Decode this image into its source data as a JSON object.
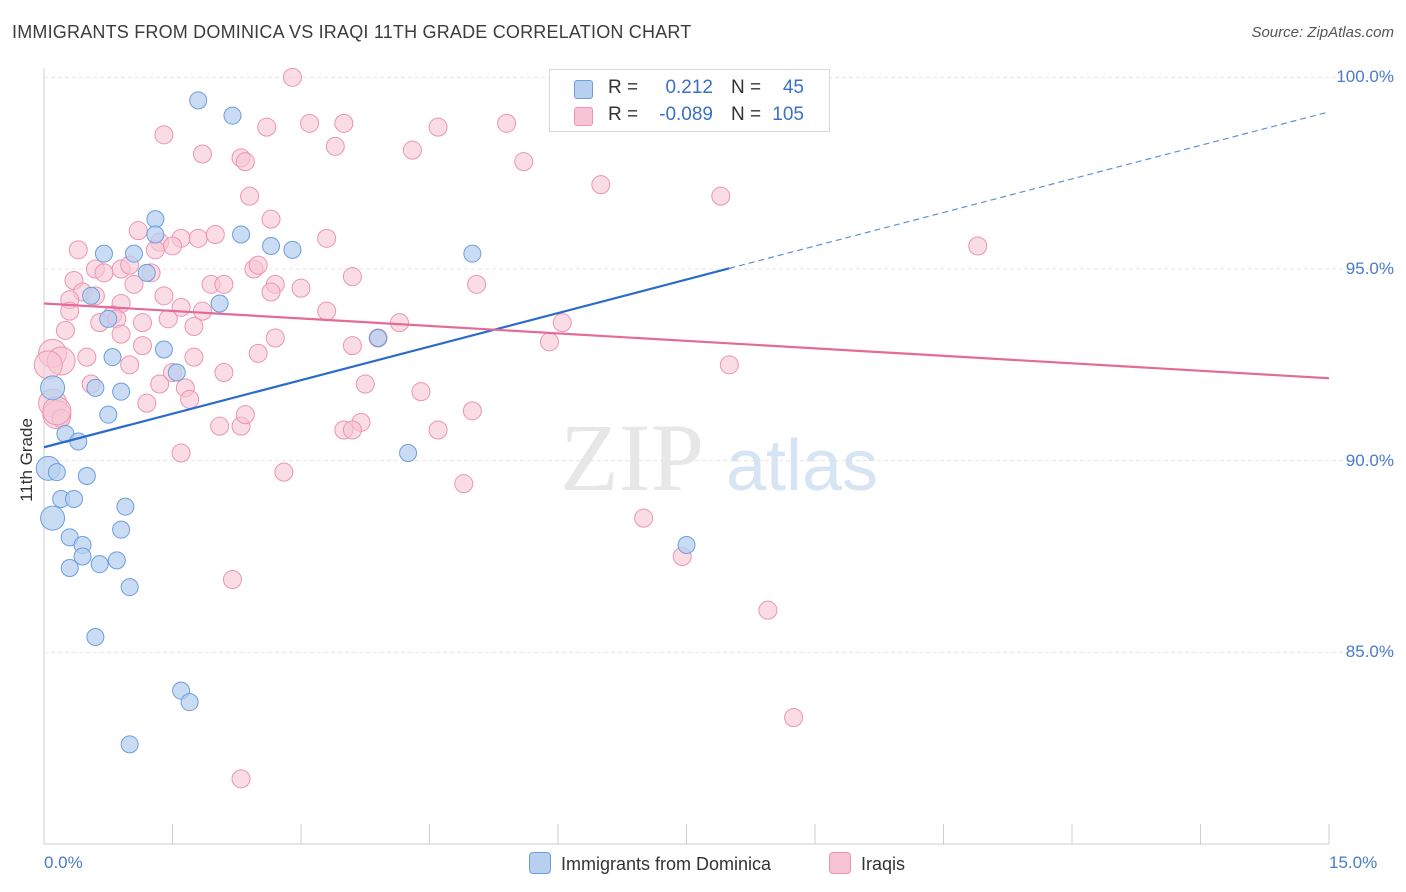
{
  "header": {
    "title": "IMMIGRANTS FROM DOMINICA VS IRAQI 11TH GRADE CORRELATION CHART",
    "source": "Source: ZipAtlas.com"
  },
  "watermark": {
    "zip": "ZIP",
    "atlas": "atlas"
  },
  "legend": {
    "r_label": "R =",
    "n_label": "N =",
    "rows": [
      {
        "r": "0.212",
        "n": "45"
      },
      {
        "r": "-0.089",
        "n": "105"
      }
    ]
  },
  "bottom_legend": {
    "series1": "Immigrants from Dominica",
    "series2": "Iraqis"
  },
  "colors": {
    "blue_fill": "#b7d0f0",
    "blue_stroke": "#6c9ede",
    "blue_line": "#2a6cc8",
    "pink_fill": "#f6c4d4",
    "pink_stroke": "#ec94b2",
    "pink_line": "#e46b98",
    "axis_text": "#4a7ac8"
  },
  "chart_data": {
    "type": "scatter",
    "title": "IMMIGRANTS FROM DOMINICA VS IRAQI 11TH GRADE CORRELATION CHART",
    "xlabel": "",
    "ylabel": "11th Grade",
    "xlim": [
      0,
      15
    ],
    "ylim": [
      80.0,
      100.4
    ],
    "x_tick_labels": [
      "0.0%",
      "15.0%"
    ],
    "y_ticks": [
      85,
      90,
      95,
      100
    ],
    "y_tick_labels": [
      "85.0%",
      "90.0%",
      "95.0%",
      "100.0%"
    ],
    "grid": true,
    "series": [
      {
        "name": "Immigrants from Dominica",
        "r": 0.212,
        "n": 45,
        "trend": {
          "x0": 0,
          "y0": 90.35,
          "x1": 15,
          "y1": 99.1,
          "solid_until_x": 8.0
        },
        "points": [
          [
            1.8,
            99.4
          ],
          [
            2.2,
            99.0
          ],
          [
            1.3,
            96.3
          ],
          [
            1.3,
            95.9
          ],
          [
            2.3,
            95.9
          ],
          [
            0.7,
            95.4
          ],
          [
            1.05,
            95.4
          ],
          [
            2.65,
            95.6
          ],
          [
            2.9,
            95.5
          ],
          [
            1.2,
            94.9
          ],
          [
            0.55,
            94.3
          ],
          [
            2.05,
            94.1
          ],
          [
            0.75,
            93.7
          ],
          [
            3.9,
            93.2
          ],
          [
            1.4,
            92.9
          ],
          [
            0.8,
            92.7
          ],
          [
            0.1,
            91.9
          ],
          [
            0.6,
            91.9
          ],
          [
            0.9,
            91.8
          ],
          [
            1.55,
            92.3
          ],
          [
            0.75,
            91.2
          ],
          [
            0.25,
            90.7
          ],
          [
            0.4,
            90.5
          ],
          [
            0.05,
            89.8
          ],
          [
            0.15,
            89.7
          ],
          [
            0.5,
            89.6
          ],
          [
            0.2,
            89.0
          ],
          [
            0.35,
            89.0
          ],
          [
            0.1,
            88.5
          ],
          [
            0.95,
            88.8
          ],
          [
            0.9,
            88.2
          ],
          [
            0.3,
            88.0
          ],
          [
            0.45,
            87.8
          ],
          [
            0.45,
            87.5
          ],
          [
            0.65,
            87.3
          ],
          [
            0.85,
            87.4
          ],
          [
            0.3,
            87.2
          ],
          [
            1.0,
            86.7
          ],
          [
            0.6,
            85.4
          ],
          [
            1.6,
            84.0
          ],
          [
            1.7,
            83.7
          ],
          [
            1.0,
            82.6
          ],
          [
            4.25,
            90.2
          ],
          [
            5.0,
            95.4
          ],
          [
            7.5,
            87.8
          ]
        ]
      },
      {
        "name": "Iraqis",
        "r": -0.089,
        "n": 105,
        "trend": {
          "x0": 0,
          "y0": 94.1,
          "x1": 15,
          "y1": 92.15
        },
        "points": [
          [
            2.9,
            100.0
          ],
          [
            1.4,
            98.5
          ],
          [
            2.6,
            98.7
          ],
          [
            3.1,
            98.8
          ],
          [
            3.5,
            98.8
          ],
          [
            4.6,
            98.7
          ],
          [
            5.4,
            98.8
          ],
          [
            3.4,
            98.2
          ],
          [
            4.3,
            98.1
          ],
          [
            1.85,
            98.0
          ],
          [
            2.3,
            97.9
          ],
          [
            2.35,
            97.8
          ],
          [
            5.6,
            97.8
          ],
          [
            6.5,
            97.2
          ],
          [
            7.9,
            96.9
          ],
          [
            2.4,
            96.9
          ],
          [
            2.65,
            96.3
          ],
          [
            1.1,
            96.0
          ],
          [
            1.35,
            95.7
          ],
          [
            1.6,
            95.8
          ],
          [
            1.8,
            95.8
          ],
          [
            2.0,
            95.9
          ],
          [
            3.3,
            95.8
          ],
          [
            0.4,
            95.5
          ],
          [
            1.5,
            95.6
          ],
          [
            1.3,
            95.5
          ],
          [
            10.9,
            95.6
          ],
          [
            0.6,
            95.0
          ],
          [
            0.9,
            95.0
          ],
          [
            1.0,
            95.1
          ],
          [
            0.7,
            94.9
          ],
          [
            1.25,
            94.9
          ],
          [
            2.45,
            95.0
          ],
          [
            2.5,
            95.1
          ],
          [
            3.6,
            94.8
          ],
          [
            0.35,
            94.7
          ],
          [
            1.05,
            94.6
          ],
          [
            1.95,
            94.6
          ],
          [
            2.1,
            94.6
          ],
          [
            2.7,
            94.6
          ],
          [
            5.05,
            94.6
          ],
          [
            0.45,
            94.4
          ],
          [
            0.6,
            94.3
          ],
          [
            1.4,
            94.3
          ],
          [
            2.65,
            94.4
          ],
          [
            3.0,
            94.5
          ],
          [
            0.3,
            94.2
          ],
          [
            0.9,
            94.1
          ],
          [
            1.6,
            94.0
          ],
          [
            1.85,
            93.9
          ],
          [
            0.3,
            93.9
          ],
          [
            0.8,
            93.8
          ],
          [
            0.85,
            93.7
          ],
          [
            1.15,
            93.6
          ],
          [
            1.45,
            93.7
          ],
          [
            0.65,
            93.6
          ],
          [
            4.15,
            93.6
          ],
          [
            6.05,
            93.6
          ],
          [
            0.25,
            93.4
          ],
          [
            1.75,
            93.5
          ],
          [
            0.9,
            93.3
          ],
          [
            2.7,
            93.2
          ],
          [
            3.9,
            93.2
          ],
          [
            3.6,
            93.0
          ],
          [
            1.15,
            93.0
          ],
          [
            0.1,
            92.8
          ],
          [
            0.2,
            92.6
          ],
          [
            1.75,
            92.7
          ],
          [
            2.5,
            92.8
          ],
          [
            8.0,
            92.5
          ],
          [
            2.1,
            92.3
          ],
          [
            1.5,
            92.3
          ],
          [
            1.35,
            92.0
          ],
          [
            3.75,
            92.0
          ],
          [
            1.65,
            91.9
          ],
          [
            4.4,
            91.8
          ],
          [
            1.7,
            91.6
          ],
          [
            1.2,
            91.5
          ],
          [
            0.1,
            91.5
          ],
          [
            5.0,
            91.3
          ],
          [
            0.15,
            91.2
          ],
          [
            3.7,
            91.0
          ],
          [
            2.05,
            90.9
          ],
          [
            2.3,
            90.9
          ],
          [
            3.5,
            90.8
          ],
          [
            3.6,
            90.8
          ],
          [
            4.6,
            90.8
          ],
          [
            1.6,
            90.2
          ],
          [
            2.8,
            89.7
          ],
          [
            4.9,
            89.4
          ],
          [
            7.0,
            88.5
          ],
          [
            7.45,
            87.5
          ],
          [
            2.2,
            86.9
          ],
          [
            8.45,
            86.1
          ],
          [
            8.75,
            83.3
          ],
          [
            2.3,
            81.7
          ],
          [
            0.5,
            92.7
          ],
          [
            0.2,
            91.1
          ],
          [
            0.05,
            92.5
          ],
          [
            0.15,
            91.3
          ],
          [
            0.55,
            92.0
          ],
          [
            1.0,
            92.5
          ],
          [
            2.35,
            91.2
          ],
          [
            5.9,
            93.1
          ],
          [
            3.3,
            93.9
          ]
        ]
      }
    ]
  }
}
